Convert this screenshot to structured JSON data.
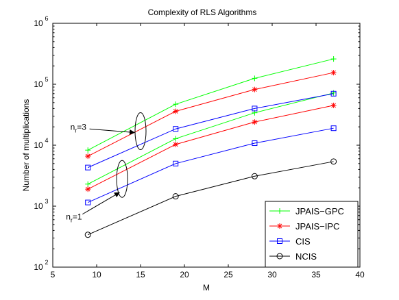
{
  "chart_data": {
    "type": "line",
    "title": "Complexity of RLS Algorithms",
    "xlabel": "M",
    "ylabel": "Number of multiplications",
    "xlim": [
      5,
      40
    ],
    "ylim": [
      100,
      1000000
    ],
    "yscale": "log",
    "xticks": [
      5,
      10,
      15,
      20,
      25,
      30,
      35,
      40
    ],
    "yticks": [
      {
        "base": "10",
        "exp": "2",
        "value": 100
      },
      {
        "base": "10",
        "exp": "3",
        "value": 1000
      },
      {
        "base": "10",
        "exp": "4",
        "value": 10000
      },
      {
        "base": "10",
        "exp": "5",
        "value": 100000
      },
      {
        "base": "10",
        "exp": "6",
        "value": 1000000
      }
    ],
    "grid": false,
    "legend_position": "bottom-right",
    "series": [
      {
        "name": "JPAIS−GPC",
        "color": "#00ff00",
        "marker": "plus",
        "x": [
          9,
          19,
          28,
          37
        ],
        "values": [
          8300,
          47000,
          125000,
          260000
        ]
      },
      {
        "name": "JPAIS−GPC",
        "color": "#00ff00",
        "marker": "plus",
        "legend": false,
        "x": [
          9,
          19,
          28,
          37
        ],
        "values": [
          2300,
          12800,
          34000,
          72000
        ]
      },
      {
        "name": "JPAIS−IPC",
        "color": "#ff0000",
        "marker": "star",
        "x": [
          9,
          19,
          28,
          37
        ],
        "values": [
          6600,
          36000,
          82000,
          155000
        ]
      },
      {
        "name": "JPAIS−IPC",
        "color": "#ff0000",
        "marker": "star",
        "legend": false,
        "x": [
          9,
          19,
          28,
          37
        ],
        "values": [
          1900,
          10300,
          24000,
          45000
        ]
      },
      {
        "name": "CIS",
        "color": "#0000ff",
        "marker": "square",
        "x": [
          9,
          19,
          28,
          37
        ],
        "values": [
          4300,
          18500,
          40000,
          70000
        ]
      },
      {
        "name": "CIS",
        "color": "#0000ff",
        "marker": "square",
        "legend": false,
        "x": [
          9,
          19,
          28,
          37
        ],
        "values": [
          1150,
          5000,
          10800,
          19000
        ]
      },
      {
        "name": "NCIS",
        "color": "#000000",
        "marker": "circle",
        "x": [
          9,
          19,
          28,
          37
        ],
        "values": [
          340,
          1450,
          3100,
          5400
        ]
      }
    ],
    "annotations": [
      {
        "text": "n",
        "sub": "r",
        "suffix": "=3",
        "x": 7,
        "y": 18000,
        "ellipse": {
          "cx": 15,
          "cy": 17000
        }
      },
      {
        "text": "n",
        "sub": "r",
        "suffix": "=1",
        "x": 6.5,
        "y": 600,
        "ellipse": {
          "cx": 12.9,
          "cy": 2800
        }
      }
    ]
  }
}
